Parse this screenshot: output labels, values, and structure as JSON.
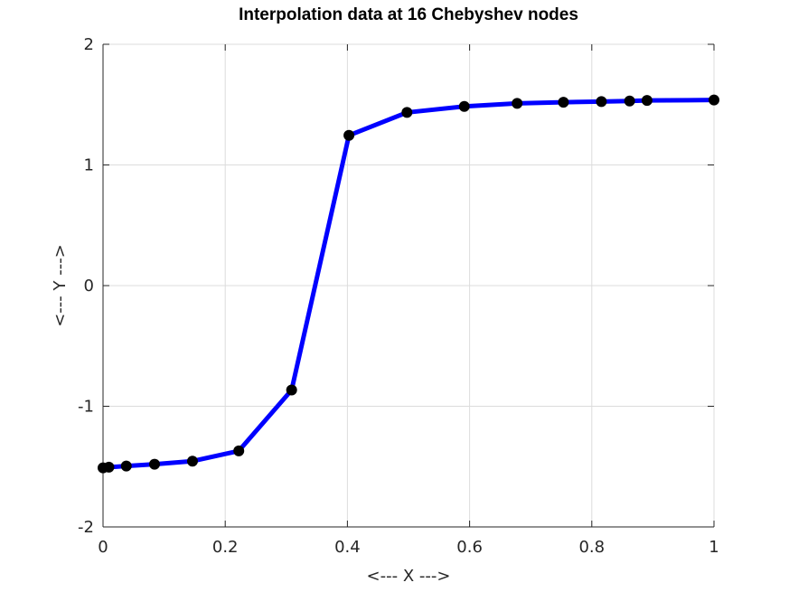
{
  "chart_data": {
    "type": "line",
    "title": "Interpolation data at 16 Chebyshev nodes",
    "xlabel": "<--- X --->",
    "ylabel": "<--- Y --->",
    "xlim": [
      0,
      1
    ],
    "ylim": [
      -2,
      2
    ],
    "xticks": [
      0,
      0.2,
      0.4,
      0.6,
      0.8,
      1
    ],
    "xtick_labels": [
      "0",
      "0.2",
      "0.4",
      "0.6",
      "0.8",
      "1"
    ],
    "yticks": [
      -2,
      -1,
      0,
      1,
      2
    ],
    "ytick_labels": [
      "-2",
      "-1",
      "0",
      "1",
      "2"
    ],
    "grid": true,
    "series": [
      {
        "line_color": "#0000ff",
        "marker_color": "#000000",
        "x": [
          0.0,
          0.0096,
          0.0381,
          0.0843,
          0.1464,
          0.2222,
          0.3087,
          0.4025,
          0.4975,
          0.5913,
          0.6778,
          0.7536,
          0.8157,
          0.8619,
          0.8904,
          1.0
        ],
        "y": [
          -1.51,
          -1.505,
          -1.495,
          -1.48,
          -1.455,
          -1.37,
          -0.865,
          1.245,
          1.435,
          1.485,
          1.51,
          1.52,
          1.525,
          1.53,
          1.535,
          1.538
        ]
      }
    ]
  }
}
